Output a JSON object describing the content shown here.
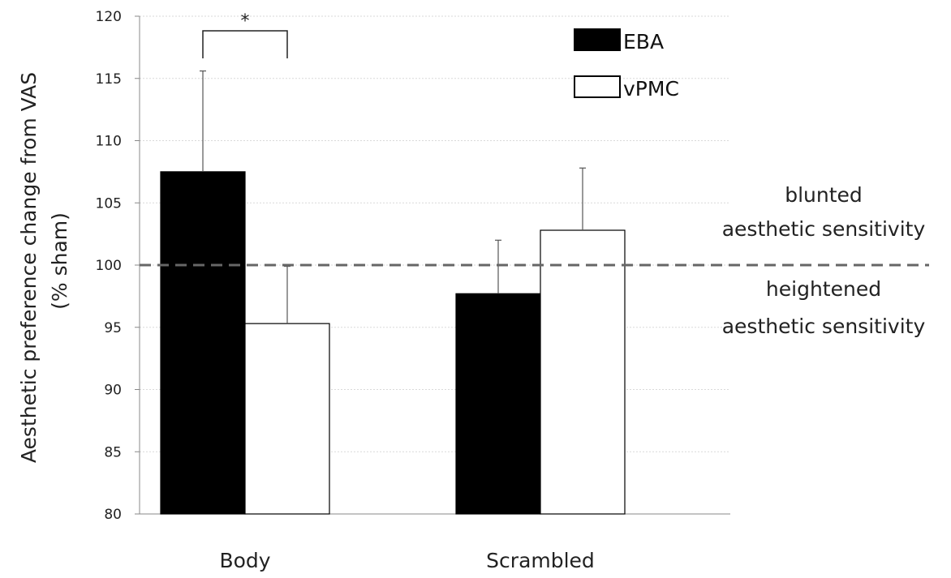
{
  "chart_data": {
    "type": "bar",
    "title": "",
    "categories": [
      "Body",
      "Scrambled"
    ],
    "series": [
      {
        "name": "EBA",
        "values": [
          107.5,
          97.7
        ],
        "error": [
          8.1,
          4.3
        ],
        "color": "#000000"
      },
      {
        "name": "vPMC",
        "values": [
          95.3,
          102.8
        ],
        "error": [
          4.6,
          5.0
        ],
        "color": "#ffffff"
      }
    ],
    "ylabel_lines": [
      "Aesthetic preference change from VAS",
      "(% sham)"
    ],
    "xlabel": "",
    "ylim": [
      80,
      120
    ],
    "yticks": [
      80,
      85,
      90,
      95,
      100,
      105,
      110,
      115,
      120
    ],
    "grid": true,
    "legend_position": "top-right",
    "reference_line": 100,
    "annotations": {
      "above_line": [
        "blunted",
        "aesthetic sensitivity"
      ],
      "below_line": [
        "heightened",
        "aesthetic sensitivity"
      ]
    },
    "significance": {
      "marker": "*",
      "category": "Body"
    }
  }
}
